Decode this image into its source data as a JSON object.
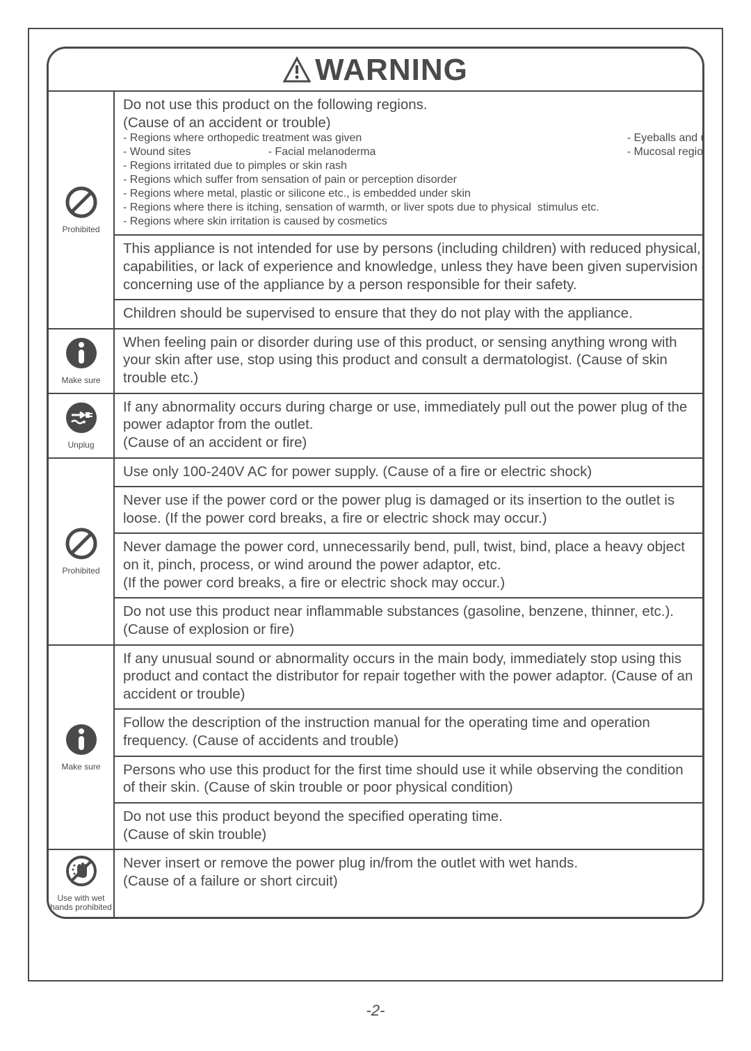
{
  "title": "WARNING",
  "pageNumber": "-2-",
  "icons": {
    "prohibited": "Prohibited",
    "makesure": "Make sure",
    "unplug": "Unplug",
    "wethands": "Use with wet\nhands prohibited"
  },
  "groups": [
    {
      "icon": "prohibited",
      "cells": [
        {
          "intro": "Do not use this product on the following regions.\n(Cause of an accident or trouble)",
          "bulletsLeft": [
            "- Regions where orthopedic treatment was given",
            "- Wound sites                         - Facial melanoderma",
            "- Regions irritated due to pimples or skin rash",
            "- Regions which suffer from sensation of pain or perception disorder",
            "- Regions where metal, plastic or silicone etc., is embedded under skin",
            "- Regions where there is itching, sensation of warmth, or liver spots due to physical  stimulus etc.",
            "- Regions where skin irritation is caused by cosmetics"
          ],
          "bulletsRight": [
            "- Eyeballs and upper eyelids",
            "- Mucosal regions, such as inside the mouth"
          ]
        },
        {
          "text": "This appliance is not intended for use by persons (including children) with reduced physical, sensory or mental capabilities, or lack of experience and knowledge, unless they have been given supervision or instruction concerning use of the appliance by a person responsible for their safety."
        },
        {
          "text": "Children should be supervised to ensure that they do not play with the appliance."
        }
      ]
    },
    {
      "icon": "makesure",
      "cells": [
        {
          "text": "When feeling pain or disorder during use of this product, or sensing anything wrong with your skin after use, stop using this product and consult a dermatologist. (Cause of skin trouble etc.)"
        }
      ]
    },
    {
      "icon": "unplug",
      "cells": [
        {
          "text": "If any abnormality occurs during charge or use, immediately pull out the power plug of the power adaptor from the outlet.\n(Cause of an accident or fire)"
        }
      ]
    },
    {
      "icon": "prohibited",
      "cells": [
        {
          "text": "Use only 100-240V AC for power supply. (Cause of a fire or electric shock)"
        },
        {
          "text": "Never use if the power cord or the power plug is damaged or its insertion to the outlet is loose. (If the power cord breaks, a fire or electric shock may occur.)"
        },
        {
          "text": "Never damage the power cord, unnecessarily bend, pull, twist, bind, place a heavy object on it, pinch, process, or wind around the power adaptor, etc.\n(If the power cord breaks, a fire or electric shock may occur.)"
        },
        {
          "text": "Do not use this product near inflammable substances (gasoline, benzene, thinner, etc.). (Cause of explosion or fire)"
        }
      ]
    },
    {
      "icon": "makesure",
      "cells": [
        {
          "text": "If any unusual sound or abnormality occurs in the main body, immediately stop using this product and contact the distributor for repair together with the power adaptor. (Cause of an accident or trouble)"
        },
        {
          "text": "Follow the description of the instruction manual for the operating time and operation frequency. (Cause of accidents and trouble)"
        },
        {
          "text": "Persons who use this product for the first time should use it while observing the condition of their skin. (Cause of skin trouble or poor physical condition)"
        },
        {
          "text": "Do not use this product beyond the specified operating time.\n(Cause of skin trouble)"
        }
      ]
    },
    {
      "icon": "wethands",
      "cells": [
        {
          "text": "Never insert or remove the power plug in/from the outlet with wet hands.\n(Cause of a failure or short circuit)"
        }
      ]
    }
  ],
  "colors": {
    "text": "#4a4a4a",
    "border": "#4a4a4a",
    "bg": "#ffffff"
  }
}
